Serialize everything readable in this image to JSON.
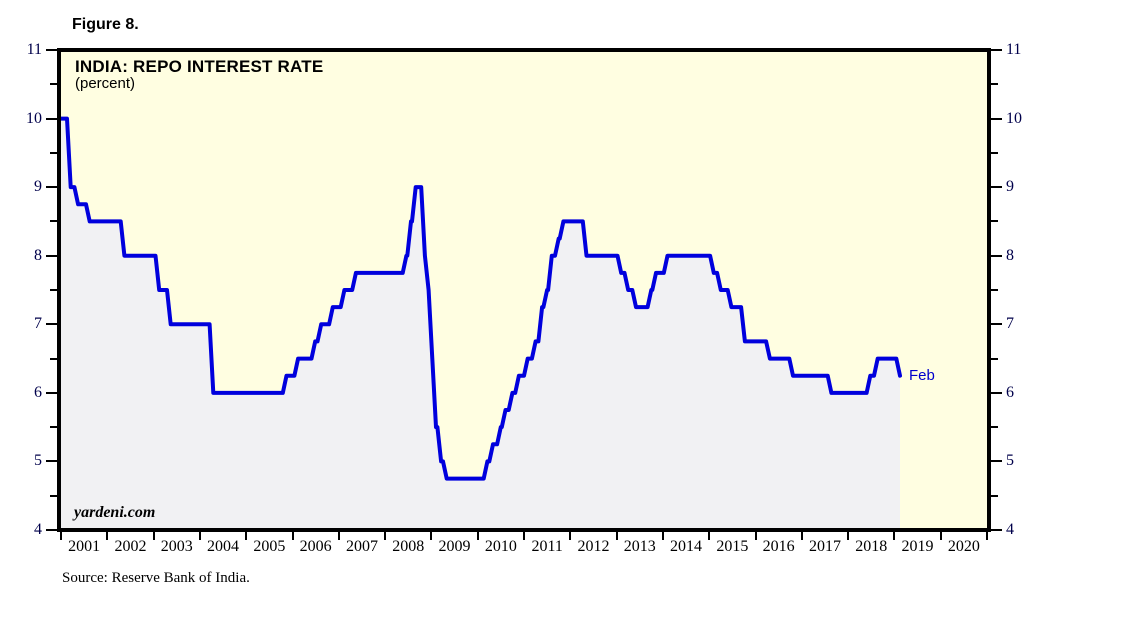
{
  "figure_label": "Figure 8.",
  "chart": {
    "title": "INDIA: REPO INTEREST RATE",
    "subtitle": "(percent)",
    "watermark": "yardeni.com",
    "end_label": "Feb",
    "colors": {
      "plot_bg": "#fffee1",
      "area_fill": "#f1f1f3",
      "line": "#0000dd",
      "frame": "#000000",
      "y_tick_label": "#00004b",
      "x_tick_label": "#000000",
      "end_label": "#0000cc"
    }
  },
  "source_note": "Source: Reserve Bank of India.",
  "chart_data": {
    "type": "line",
    "style": "step-area",
    "title": "INDIA: REPO INTEREST RATE",
    "ylabel": "percent",
    "series_name": "India repo interest rate",
    "ylim": [
      4,
      11
    ],
    "xlim": [
      2001,
      2021
    ],
    "y_major_ticks": [
      11,
      10,
      9,
      8,
      7,
      6,
      5,
      4
    ],
    "y_minor_ticks": [
      10.5,
      9.5,
      8.5,
      7.5,
      6.5,
      5.5,
      4.5
    ],
    "x_tick_years": [
      2001,
      2002,
      2003,
      2004,
      2005,
      2006,
      2007,
      2008,
      2009,
      2010,
      2011,
      2012,
      2013,
      2014,
      2015,
      2016,
      2017,
      2018,
      2019,
      2020
    ],
    "grid": false,
    "legend": "none",
    "last_point_label": "Feb",
    "step_changes": [
      [
        2001.0,
        10.0
      ],
      [
        2001.17,
        9.0
      ],
      [
        2001.33,
        8.75
      ],
      [
        2001.58,
        8.5
      ],
      [
        2002.33,
        8.0
      ],
      [
        2003.08,
        7.5
      ],
      [
        2003.33,
        7.0
      ],
      [
        2004.25,
        6.0
      ],
      [
        2005.83,
        6.25
      ],
      [
        2006.08,
        6.5
      ],
      [
        2006.45,
        6.75
      ],
      [
        2006.58,
        7.0
      ],
      [
        2006.83,
        7.25
      ],
      [
        2007.08,
        7.5
      ],
      [
        2007.33,
        7.75
      ],
      [
        2008.42,
        8.0
      ],
      [
        2008.52,
        8.5
      ],
      [
        2008.62,
        9.0
      ],
      [
        2008.82,
        8.0
      ],
      [
        2008.9,
        7.5
      ],
      [
        2008.98,
        6.5
      ],
      [
        2009.06,
        5.5
      ],
      [
        2009.17,
        5.0
      ],
      [
        2009.29,
        4.75
      ],
      [
        2010.17,
        5.0
      ],
      [
        2010.29,
        5.25
      ],
      [
        2010.46,
        5.5
      ],
      [
        2010.56,
        5.75
      ],
      [
        2010.71,
        6.0
      ],
      [
        2010.85,
        6.25
      ],
      [
        2011.04,
        6.5
      ],
      [
        2011.21,
        6.75
      ],
      [
        2011.35,
        7.25
      ],
      [
        2011.46,
        7.5
      ],
      [
        2011.56,
        8.0
      ],
      [
        2011.71,
        8.25
      ],
      [
        2011.81,
        8.5
      ],
      [
        2012.31,
        8.0
      ],
      [
        2013.06,
        7.75
      ],
      [
        2013.21,
        7.5
      ],
      [
        2013.38,
        7.25
      ],
      [
        2013.71,
        7.5
      ],
      [
        2013.81,
        7.75
      ],
      [
        2014.06,
        8.0
      ],
      [
        2015.06,
        7.75
      ],
      [
        2015.21,
        7.5
      ],
      [
        2015.44,
        7.25
      ],
      [
        2015.73,
        6.75
      ],
      [
        2016.27,
        6.5
      ],
      [
        2016.77,
        6.25
      ],
      [
        2017.6,
        6.0
      ],
      [
        2018.44,
        6.25
      ],
      [
        2018.6,
        6.5
      ],
      [
        2019.08,
        6.25
      ]
    ]
  }
}
